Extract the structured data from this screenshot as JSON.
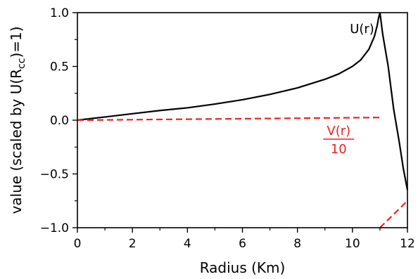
{
  "chart_data": {
    "type": "line",
    "title": "",
    "xlabel": "Radius (Km)",
    "ylabel_main": "value (scaled by U(R",
    "ylabel_sub": "cc",
    "ylabel_end": ")=1)",
    "xlim": [
      0,
      12
    ],
    "ylim": [
      -1.0,
      1.0
    ],
    "xticks": [
      0,
      2,
      4,
      6,
      8,
      10,
      12
    ],
    "xtick_labels": [
      "0",
      "2",
      "4",
      "6",
      "8",
      "10",
      "12"
    ],
    "yticks": [
      -1.0,
      -0.5,
      0.0,
      0.5,
      1.0
    ],
    "ytick_labels": [
      "−1.0",
      "−0.5",
      "0.0",
      "0.5",
      "1.0"
    ],
    "grid": false,
    "legend": "none",
    "series": [
      {
        "color": "#000000",
        "style": "solid",
        "x": [
          0,
          1,
          2,
          3,
          4,
          5,
          6,
          7,
          8,
          9,
          9.5,
          10,
          10.3,
          10.6,
          10.8,
          10.9,
          10.95,
          11.0,
          11.1,
          11.3,
          11.5,
          11.7,
          11.85,
          12.0
        ],
        "y": [
          0.0,
          0.03,
          0.06,
          0.09,
          0.115,
          0.15,
          0.19,
          0.24,
          0.3,
          0.38,
          0.43,
          0.5,
          0.56,
          0.66,
          0.78,
          0.88,
          0.95,
          1.0,
          0.8,
          0.5,
          0.1,
          -0.2,
          -0.45,
          -0.65
        ]
      },
      {
        "color": "#ee2222",
        "style": "dashed",
        "x": [
          0,
          11.0
        ],
        "y": [
          0.0,
          0.025
        ]
      },
      {
        "color": "#ee2222",
        "style": "dashed",
        "x": [
          11.0,
          12.0
        ],
        "y": [
          -1.0,
          -0.75
        ]
      }
    ],
    "annotations": [
      {
        "text": "U(r)",
        "x": 10.35,
        "y": 0.85,
        "color": "#000000"
      },
      {
        "numerator": "V(r)",
        "denominator": "10",
        "x": 9.5,
        "y": -0.17,
        "color": "#ee2222"
      }
    ]
  }
}
